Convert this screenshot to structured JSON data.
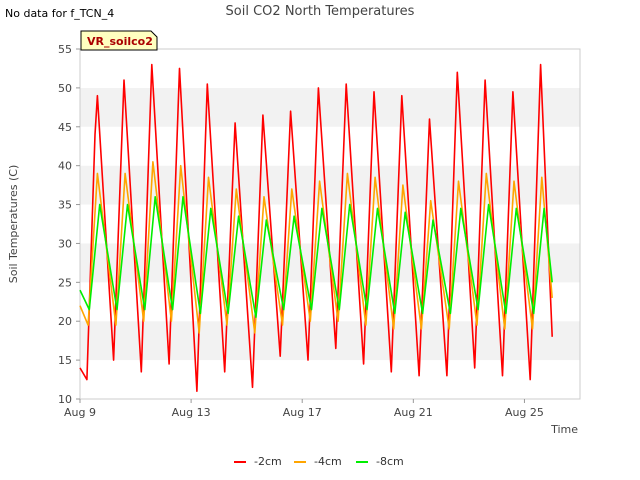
{
  "note": "No data for f_TCN_4",
  "chart_data": {
    "type": "line",
    "title": "Soil CO2 North Temperatures",
    "xlabel": "Time",
    "ylabel": "Soil Temperatures (C)",
    "ylim": [
      10,
      55
    ],
    "yticks": [
      10,
      15,
      20,
      25,
      30,
      35,
      40,
      45,
      50,
      55
    ],
    "xlim": [
      "2024-08-09",
      "2024-08-27"
    ],
    "xticks": [
      {
        "x": "2024-08-09",
        "label": "Aug 9"
      },
      {
        "x": "2024-08-13",
        "label": "Aug 13"
      },
      {
        "x": "2024-08-17",
        "label": "Aug 17"
      },
      {
        "x": "2024-08-21",
        "label": "Aug 21"
      },
      {
        "x": "2024-08-25",
        "label": "Aug 25"
      }
    ],
    "grid": "horizontal alternating bands",
    "legend_position": "bottom",
    "site_label": "VR_soilco2",
    "series": [
      {
        "name": "-2cm",
        "color": "#ff0000",
        "points": [
          [
            "2024-08-09T00:00",
            14.0
          ],
          [
            "2024-08-09T06:00",
            12.5
          ],
          [
            "2024-08-09T13:00",
            44.0
          ],
          [
            "2024-08-09T15:00",
            49.0
          ],
          [
            "2024-08-10T05:00",
            15.0
          ],
          [
            "2024-08-10T14:00",
            51.0
          ],
          [
            "2024-08-11T05:00",
            13.5
          ],
          [
            "2024-08-11T14:00",
            53.0
          ],
          [
            "2024-08-12T05:00",
            14.5
          ],
          [
            "2024-08-12T14:00",
            52.5
          ],
          [
            "2024-08-13T05:00",
            11.0
          ],
          [
            "2024-08-13T14:00",
            50.5
          ],
          [
            "2024-08-14T05:00",
            13.5
          ],
          [
            "2024-08-14T14:00",
            45.5
          ],
          [
            "2024-08-15T05:00",
            11.5
          ],
          [
            "2024-08-15T14:00",
            46.5
          ],
          [
            "2024-08-16T05:00",
            15.5
          ],
          [
            "2024-08-16T14:00",
            47.0
          ],
          [
            "2024-08-17T05:00",
            15.0
          ],
          [
            "2024-08-17T14:00",
            50.0
          ],
          [
            "2024-08-18T05:00",
            16.5
          ],
          [
            "2024-08-18T14:00",
            50.5
          ],
          [
            "2024-08-19T05:00",
            14.5
          ],
          [
            "2024-08-19T14:00",
            49.5
          ],
          [
            "2024-08-20T05:00",
            13.5
          ],
          [
            "2024-08-20T14:00",
            49.0
          ],
          [
            "2024-08-21T05:00",
            13.0
          ],
          [
            "2024-08-21T14:00",
            46.0
          ],
          [
            "2024-08-22T05:00",
            13.0
          ],
          [
            "2024-08-22T14:00",
            52.0
          ],
          [
            "2024-08-23T05:00",
            14.0
          ],
          [
            "2024-08-23T14:00",
            51.0
          ],
          [
            "2024-08-24T05:00",
            13.0
          ],
          [
            "2024-08-24T14:00",
            49.5
          ],
          [
            "2024-08-25T05:00",
            12.5
          ],
          [
            "2024-08-25T14:00",
            53.0
          ],
          [
            "2024-08-26T00:00",
            18.0
          ]
        ]
      },
      {
        "name": "-4cm",
        "color": "#ffa500",
        "points": [
          [
            "2024-08-09T00:00",
            22.0
          ],
          [
            "2024-08-09T07:00",
            19.5
          ],
          [
            "2024-08-09T15:00",
            39.0
          ],
          [
            "2024-08-10T07:00",
            19.5
          ],
          [
            "2024-08-10T15:00",
            39.0
          ],
          [
            "2024-08-11T07:00",
            20.0
          ],
          [
            "2024-08-11T15:00",
            40.5
          ],
          [
            "2024-08-12T07:00",
            20.0
          ],
          [
            "2024-08-12T15:00",
            40.0
          ],
          [
            "2024-08-13T07:00",
            18.5
          ],
          [
            "2024-08-13T15:00",
            38.5
          ],
          [
            "2024-08-14T07:00",
            19.5
          ],
          [
            "2024-08-14T15:00",
            37.0
          ],
          [
            "2024-08-15T07:00",
            18.5
          ],
          [
            "2024-08-15T15:00",
            36.0
          ],
          [
            "2024-08-16T07:00",
            19.5
          ],
          [
            "2024-08-16T15:00",
            37.0
          ],
          [
            "2024-08-17T07:00",
            20.0
          ],
          [
            "2024-08-17T15:00",
            38.0
          ],
          [
            "2024-08-18T07:00",
            20.0
          ],
          [
            "2024-08-18T15:00",
            39.0
          ],
          [
            "2024-08-19T07:00",
            19.5
          ],
          [
            "2024-08-19T15:00",
            38.5
          ],
          [
            "2024-08-20T07:00",
            19.0
          ],
          [
            "2024-08-20T15:00",
            37.5
          ],
          [
            "2024-08-21T07:00",
            19.0
          ],
          [
            "2024-08-21T15:00",
            35.5
          ],
          [
            "2024-08-22T07:00",
            19.0
          ],
          [
            "2024-08-22T15:00",
            38.0
          ],
          [
            "2024-08-23T07:00",
            19.5
          ],
          [
            "2024-08-23T15:00",
            39.0
          ],
          [
            "2024-08-24T07:00",
            19.0
          ],
          [
            "2024-08-24T15:00",
            38.0
          ],
          [
            "2024-08-25T07:00",
            19.0
          ],
          [
            "2024-08-25T15:00",
            38.5
          ],
          [
            "2024-08-26T00:00",
            23.0
          ]
        ]
      },
      {
        "name": "-8cm",
        "color": "#00ee00",
        "points": [
          [
            "2024-08-09T00:00",
            24.0
          ],
          [
            "2024-08-09T08:00",
            21.5
          ],
          [
            "2024-08-09T17:00",
            35.0
          ],
          [
            "2024-08-10T08:00",
            21.5
          ],
          [
            "2024-08-10T17:00",
            35.0
          ],
          [
            "2024-08-11T08:00",
            21.5
          ],
          [
            "2024-08-11T17:00",
            36.0
          ],
          [
            "2024-08-12T08:00",
            21.5
          ],
          [
            "2024-08-12T17:00",
            36.0
          ],
          [
            "2024-08-13T08:00",
            21.0
          ],
          [
            "2024-08-13T17:00",
            34.5
          ],
          [
            "2024-08-14T08:00",
            21.0
          ],
          [
            "2024-08-14T17:00",
            33.5
          ],
          [
            "2024-08-15T08:00",
            20.5
          ],
          [
            "2024-08-15T17:00",
            33.0
          ],
          [
            "2024-08-16T08:00",
            21.5
          ],
          [
            "2024-08-16T17:00",
            33.5
          ],
          [
            "2024-08-17T08:00",
            21.5
          ],
          [
            "2024-08-17T17:00",
            34.5
          ],
          [
            "2024-08-18T08:00",
            21.5
          ],
          [
            "2024-08-18T17:00",
            35.0
          ],
          [
            "2024-08-19T08:00",
            21.5
          ],
          [
            "2024-08-19T17:00",
            34.5
          ],
          [
            "2024-08-20T08:00",
            21.0
          ],
          [
            "2024-08-20T17:00",
            34.0
          ],
          [
            "2024-08-21T08:00",
            21.0
          ],
          [
            "2024-08-21T17:00",
            33.0
          ],
          [
            "2024-08-22T08:00",
            21.0
          ],
          [
            "2024-08-22T17:00",
            34.5
          ],
          [
            "2024-08-23T08:00",
            21.5
          ],
          [
            "2024-08-23T17:00",
            35.0
          ],
          [
            "2024-08-24T08:00",
            21.0
          ],
          [
            "2024-08-24T17:00",
            34.5
          ],
          [
            "2024-08-25T08:00",
            21.0
          ],
          [
            "2024-08-25T17:00",
            34.5
          ],
          [
            "2024-08-26T00:00",
            25.0
          ]
        ]
      }
    ]
  }
}
